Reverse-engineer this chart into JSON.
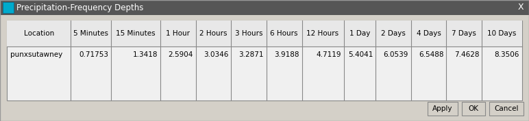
{
  "title": "Precipitation-Frequency Depths",
  "title_bar_color": "#565656",
  "title_text_color": "#ffffff",
  "dialog_bg": "#d4d0c8",
  "table_bg": "#f0f0f0",
  "table_border_color": "#888888",
  "header_row": [
    "Location",
    "5 Minutes",
    "15 Minutes",
    "1 Hour",
    "2 Hours",
    "3 Hours",
    "6 Hours",
    "12 Hours",
    "1 Day",
    "2 Days",
    "4 Days",
    "7 Days",
    "10 Days"
  ],
  "data_rows": [
    [
      "punxsutawney",
      "0.71753",
      "1.3418",
      "2.5904",
      "3.0346",
      "3.2871",
      "3.9188",
      "4.7119",
      "5.4041",
      "6.0539",
      "6.5488",
      "7.4628",
      "8.3506"
    ]
  ],
  "button_labels": [
    "Apply",
    "OK",
    "Cancel"
  ],
  "button_color": "#d4d0c8",
  "button_border_color": "#888888",
  "font_size": 7.5,
  "header_font_size": 7.5,
  "col_widths": [
    1.3,
    0.82,
    1.0,
    0.72,
    0.72,
    0.72,
    0.72,
    0.85,
    0.65,
    0.72,
    0.72,
    0.72,
    0.82
  ]
}
